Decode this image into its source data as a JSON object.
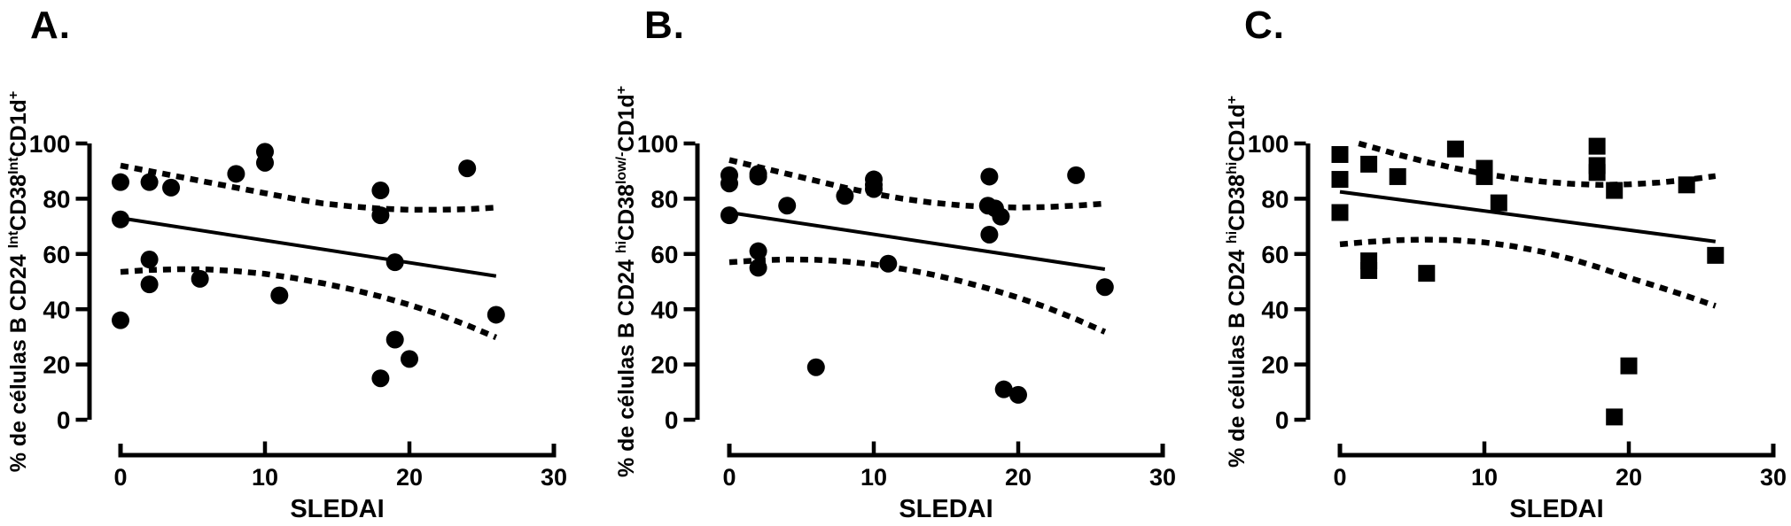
{
  "figure": {
    "background": "#ffffff",
    "ink": "#000000"
  },
  "chart_data": [
    {
      "type": "scatter",
      "panel_label": "A.",
      "xlabel": "SLEDAI",
      "ylabel_parts": [
        {
          "text": "% de células B CD24 ",
          "sup": false
        },
        {
          "text": "Int",
          "sup": true
        },
        {
          "text": "CD38",
          "sup": false
        },
        {
          "text": "Int",
          "sup": true
        },
        {
          "text": "CD1d",
          "sup": false
        },
        {
          "text": "+",
          "sup": true
        }
      ],
      "marker": "circle",
      "xlim": [
        0,
        30
      ],
      "ylim": [
        0,
        100
      ],
      "x_ticks": [
        0,
        10,
        20,
        30
      ],
      "y_ticks": [
        0,
        20,
        40,
        60,
        80,
        100
      ],
      "points": [
        [
          0,
          86
        ],
        [
          2,
          86
        ],
        [
          3.5,
          84
        ],
        [
          0,
          72.5
        ],
        [
          0,
          36
        ],
        [
          2,
          58
        ],
        [
          2,
          49
        ],
        [
          5.5,
          51
        ],
        [
          8,
          89
        ],
        [
          10,
          97
        ],
        [
          10,
          93
        ],
        [
          11,
          45
        ],
        [
          18,
          83
        ],
        [
          18,
          74
        ],
        [
          18,
          15
        ],
        [
          19,
          57
        ],
        [
          19,
          29
        ],
        [
          20,
          22
        ],
        [
          24,
          91
        ],
        [
          26,
          38
        ]
      ],
      "fit_line": [
        [
          0,
          73
        ],
        [
          26,
          52
        ]
      ],
      "ci_upper": [
        [
          0,
          92
        ],
        [
          2,
          90
        ],
        [
          4,
          88
        ],
        [
          6,
          86
        ],
        [
          8,
          84
        ],
        [
          10,
          82
        ],
        [
          12,
          80
        ],
        [
          14,
          78.3
        ],
        [
          16,
          77.2
        ],
        [
          18,
          76.4
        ],
        [
          20,
          76
        ],
        [
          22,
          76
        ],
        [
          24,
          76.2
        ],
        [
          26,
          76.8
        ]
      ],
      "ci_lower": [
        [
          0,
          53.5
        ],
        [
          2,
          54.2
        ],
        [
          4,
          54.5
        ],
        [
          6,
          54.4
        ],
        [
          8,
          53.8
        ],
        [
          10,
          52.8
        ],
        [
          12,
          51.3
        ],
        [
          14,
          49.4
        ],
        [
          16,
          47.2
        ],
        [
          18,
          44.6
        ],
        [
          20,
          41.6
        ],
        [
          22,
          38.2
        ],
        [
          24,
          34.2
        ],
        [
          26,
          29.8
        ]
      ]
    },
    {
      "type": "scatter",
      "panel_label": "B.",
      "xlabel": "SLEDAI",
      "ylabel_parts": [
        {
          "text": "% de células B CD24 ",
          "sup": false
        },
        {
          "text": "hi",
          "sup": true
        },
        {
          "text": "CD38",
          "sup": false
        },
        {
          "text": "low/-",
          "sup": true
        },
        {
          "text": "CD1d",
          "sup": false
        },
        {
          "text": "+",
          "sup": true
        }
      ],
      "marker": "circle",
      "xlim": [
        0,
        30
      ],
      "ylim": [
        0,
        100
      ],
      "x_ticks": [
        0,
        10,
        20,
        30
      ],
      "y_ticks": [
        0,
        20,
        40,
        60,
        80,
        100
      ],
      "points": [
        [
          0,
          88.5
        ],
        [
          0,
          85.5
        ],
        [
          0,
          74
        ],
        [
          2,
          89
        ],
        [
          2,
          88
        ],
        [
          2,
          61
        ],
        [
          2,
          55
        ],
        [
          4,
          77.5
        ],
        [
          6,
          19
        ],
        [
          8,
          81
        ],
        [
          10,
          87
        ],
        [
          10,
          85
        ],
        [
          10,
          83.5
        ],
        [
          11,
          56.5
        ],
        [
          18,
          88
        ],
        [
          17.9,
          77.5
        ],
        [
          18.4,
          76.5
        ],
        [
          18.8,
          73.5
        ],
        [
          18,
          67
        ],
        [
          19,
          11
        ],
        [
          20,
          9
        ],
        [
          24,
          88.5
        ],
        [
          26,
          48
        ]
      ],
      "fit_line": [
        [
          0,
          75
        ],
        [
          26,
          54.5
        ]
      ],
      "ci_upper": [
        [
          0,
          94
        ],
        [
          2,
          91.5
        ],
        [
          4,
          89
        ],
        [
          6,
          86.5
        ],
        [
          8,
          84
        ],
        [
          10,
          81.8
        ],
        [
          12,
          80
        ],
        [
          14,
          78.6
        ],
        [
          16,
          77.6
        ],
        [
          18,
          77
        ],
        [
          20,
          76.8
        ],
        [
          22,
          77
        ],
        [
          24,
          77.5
        ],
        [
          26,
          78.2
        ]
      ],
      "ci_lower": [
        [
          0,
          57
        ],
        [
          2,
          57.7
        ],
        [
          4,
          58
        ],
        [
          6,
          57.9
        ],
        [
          8,
          57.3
        ],
        [
          10,
          56.2
        ],
        [
          12,
          54.6
        ],
        [
          14,
          52.6
        ],
        [
          16,
          50.2
        ],
        [
          18,
          47.4
        ],
        [
          20,
          44.2
        ],
        [
          22,
          40.6
        ],
        [
          24,
          36.4
        ],
        [
          26,
          31.8
        ]
      ]
    },
    {
      "type": "scatter",
      "panel_label": "C.",
      "xlabel": "SLEDAI",
      "ylabel_parts": [
        {
          "text": "% de células B CD24 ",
          "sup": false
        },
        {
          "text": "hi",
          "sup": true
        },
        {
          "text": "CD38",
          "sup": false
        },
        {
          "text": "hi",
          "sup": true
        },
        {
          "text": "CD1d",
          "sup": false
        },
        {
          "text": "+",
          "sup": true
        }
      ],
      "marker": "square",
      "xlim": [
        0,
        30
      ],
      "ylim": [
        0,
        100
      ],
      "x_ticks": [
        0,
        10,
        20,
        30
      ],
      "y_ticks": [
        0,
        20,
        40,
        60,
        80,
        100
      ],
      "points": [
        [
          0,
          96
        ],
        [
          0,
          87
        ],
        [
          0,
          75
        ],
        [
          2,
          92.5
        ],
        [
          2,
          57.5
        ],
        [
          2,
          54
        ],
        [
          4,
          88
        ],
        [
          6,
          53
        ],
        [
          8,
          98
        ],
        [
          10,
          91
        ],
        [
          10,
          88
        ],
        [
          11,
          78.5
        ],
        [
          17.8,
          99
        ],
        [
          17.8,
          92
        ],
        [
          17.8,
          89.5
        ],
        [
          19,
          83
        ],
        [
          19,
          1
        ],
        [
          20,
          19.5
        ],
        [
          24,
          85
        ],
        [
          26,
          59.5
        ]
      ],
      "fit_line": [
        [
          0,
          82.5
        ],
        [
          26,
          64.5
        ]
      ],
      "ci_upper": [
        [
          1.3,
          100
        ],
        [
          2,
          99
        ],
        [
          4,
          96
        ],
        [
          6,
          93.3
        ],
        [
          8,
          91
        ],
        [
          10,
          89
        ],
        [
          12,
          87.4
        ],
        [
          14,
          86.2
        ],
        [
          16,
          85.4
        ],
        [
          18,
          85
        ],
        [
          20,
          85.2
        ],
        [
          22,
          85.8
        ],
        [
          24,
          86.8
        ],
        [
          26,
          88.2
        ]
      ],
      "ci_lower": [
        [
          0,
          63.5
        ],
        [
          2,
          64.4
        ],
        [
          4,
          65
        ],
        [
          6,
          65.2
        ],
        [
          8,
          65
        ],
        [
          10,
          64.2
        ],
        [
          12,
          62.8
        ],
        [
          14,
          60.8
        ],
        [
          16,
          58.2
        ],
        [
          18,
          55
        ],
        [
          20,
          51.4
        ],
        [
          22,
          48.2
        ],
        [
          24,
          44.8
        ],
        [
          26,
          41.2
        ]
      ]
    }
  ]
}
